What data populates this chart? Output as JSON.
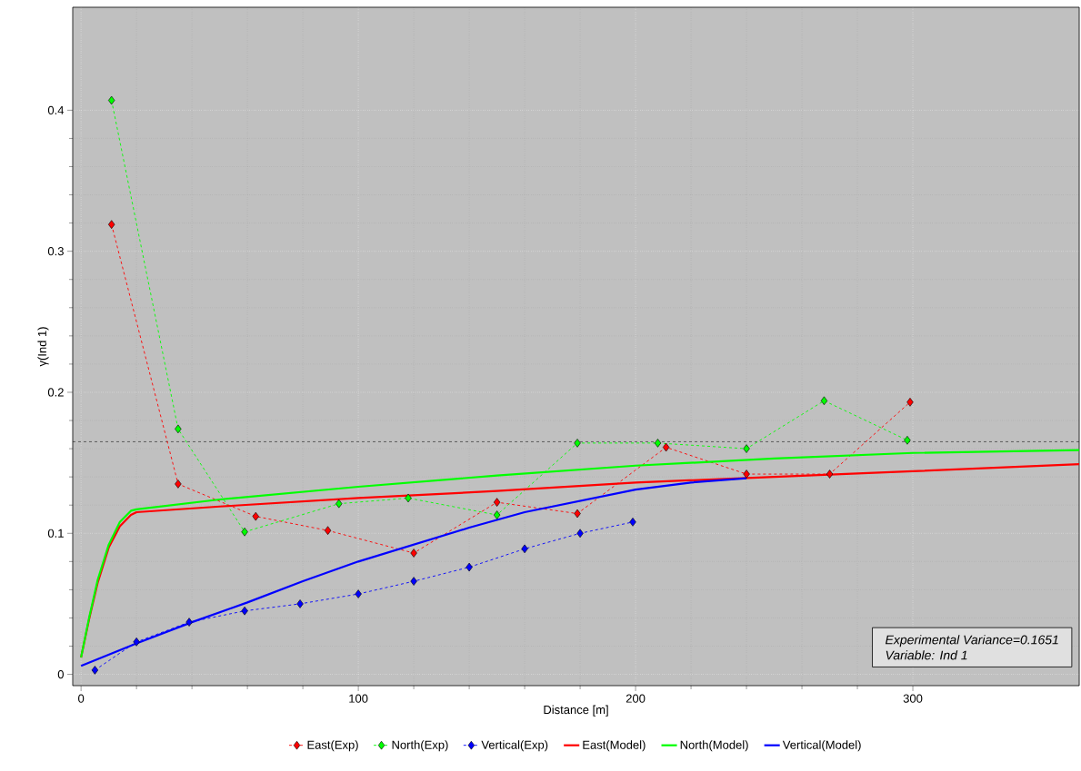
{
  "chart_data": {
    "type": "line",
    "xlabel": "Distance [m]",
    "ylabel": "γ(Ind 1)",
    "xlim": [
      -3,
      360
    ],
    "ylim": [
      -0.008,
      0.473
    ],
    "xticks": [
      0,
      100,
      200,
      300
    ],
    "yticks": [
      0,
      0.1,
      0.2,
      0.3,
      0.4
    ],
    "grid": true,
    "legend": "bottom",
    "ref_lines": [
      {
        "axis": "y",
        "value": 0.165,
        "color": "#000000",
        "line_style": "dashed"
      }
    ],
    "annotations": [
      "*Experimental Variance=0.1651*",
      "*Variable: Ind 1*"
    ],
    "series": [
      {
        "name": "East(Exp)",
        "color": "#ff0000",
        "marker": "diamond",
        "line_style": "dashed",
        "x": [
          11,
          35,
          63,
          89,
          120,
          150,
          179,
          211,
          240,
          270,
          299
        ],
        "values": [
          0.319,
          0.135,
          0.112,
          0.102,
          0.086,
          0.122,
          0.114,
          0.161,
          0.142,
          0.142,
          0.193
        ]
      },
      {
        "name": "North(Exp)",
        "color": "#00ff00",
        "marker": "diamond",
        "line_style": "dashed",
        "x": [
          11,
          35,
          59,
          93,
          118,
          150,
          179,
          208,
          240,
          268,
          298
        ],
        "values": [
          0.407,
          0.174,
          0.101,
          0.121,
          0.125,
          0.113,
          0.164,
          0.164,
          0.16,
          0.194,
          0.166
        ]
      },
      {
        "name": "Vertical(Exp)",
        "color": "#0000ff",
        "marker": "diamond",
        "line_style": "dashed",
        "x": [
          5,
          20,
          39,
          59,
          79,
          100,
          120,
          140,
          160,
          180,
          199
        ],
        "values": [
          0.003,
          0.023,
          0.037,
          0.045,
          0.05,
          0.057,
          0.066,
          0.076,
          0.089,
          0.1,
          0.108
        ]
      },
      {
        "name": "East(Model)",
        "color": "#ff0000",
        "marker": "none",
        "line_style": "solid",
        "x": [
          0,
          3,
          6,
          10,
          14,
          18,
          20,
          50,
          100,
          150,
          200,
          250,
          300,
          360
        ],
        "values": [
          0.012,
          0.04,
          0.065,
          0.09,
          0.105,
          0.113,
          0.115,
          0.119,
          0.125,
          0.13,
          0.136,
          0.14,
          0.144,
          0.149
        ]
      },
      {
        "name": "North(Model)",
        "color": "#00ff00",
        "marker": "none",
        "line_style": "solid",
        "x": [
          0,
          3,
          6,
          10,
          14,
          18,
          20,
          50,
          100,
          150,
          200,
          250,
          300,
          360
        ],
        "values": [
          0.012,
          0.041,
          0.067,
          0.092,
          0.108,
          0.116,
          0.117,
          0.124,
          0.133,
          0.141,
          0.148,
          0.153,
          0.157,
          0.159
        ]
      },
      {
        "name": "Vertical(Model)",
        "color": "#0000ff",
        "marker": "none",
        "line_style": "solid",
        "x": [
          0,
          20,
          40,
          60,
          80,
          100,
          120,
          140,
          160,
          180,
          200,
          220,
          240
        ],
        "values": [
          0.006,
          0.022,
          0.037,
          0.051,
          0.066,
          0.08,
          0.092,
          0.104,
          0.115,
          0.123,
          0.131,
          0.136,
          0.139
        ]
      }
    ]
  }
}
